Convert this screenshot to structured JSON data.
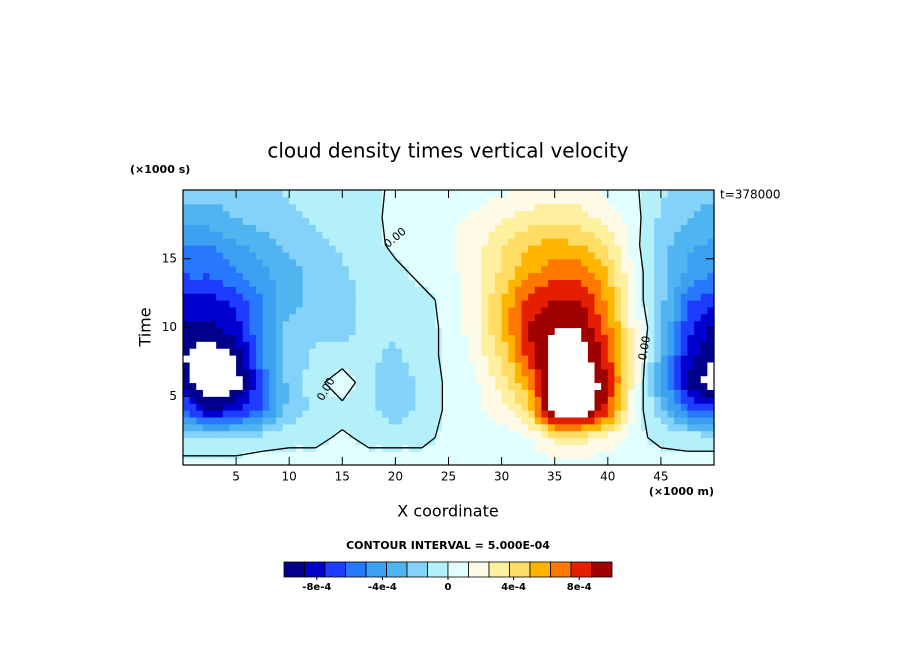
{
  "chart_data": {
    "type": "contour",
    "title": "cloud density times vertical velocity",
    "x_label": "X coordinate",
    "y_label": "Time",
    "x_unit": "(×1000 m)",
    "y_unit": "(×1000 s)",
    "time_label": "t=378000",
    "contour_interval_label": "CONTOUR INTERVAL = 5.000E-04",
    "zero_contour_label": "0.00",
    "xlim": [
      0,
      50
    ],
    "ylim": [
      0,
      20
    ],
    "xticks": [
      5,
      10,
      15,
      20,
      25,
      30,
      35,
      40,
      45
    ],
    "yticks": [
      5,
      10,
      15
    ],
    "x": [
      0,
      2.5,
      5,
      7.5,
      10,
      12.5,
      15,
      17.5,
      20,
      22.5,
      25,
      27.5,
      30,
      32.5,
      35,
      37.5,
      40,
      42.5,
      45,
      47.5,
      50
    ],
    "y": [
      0,
      2,
      4,
      6,
      8,
      10,
      12,
      14,
      16,
      18,
      20
    ],
    "z": [
      [
        5e-05,
        5e-05,
        5e-05,
        5e-05,
        5e-05,
        5e-05,
        5e-05,
        5e-05,
        5e-05,
        5e-05,
        5e-05,
        5e-05,
        5e-05,
        5e-05,
        5e-05,
        5e-05,
        5e-05,
        5e-05,
        5e-05,
        5e-05,
        5e-05
      ],
      [
        -0.0001,
        -0.0001,
        -0.0001,
        -5e-05,
        -3e-05,
        -3e-05,
        2e-05,
        -3e-05,
        -3e-05,
        -3e-05,
        3e-05,
        3e-05,
        5e-05,
        0.0001,
        0.0003,
        0.0003,
        0.0002,
        3e-05,
        -3e-05,
        -5e-05,
        -5e-05
      ],
      [
        -0.0006,
        -0.0009,
        -0.0008,
        -0.0006,
        -0.0002,
        -0.0001,
        -5e-05,
        -0.0001,
        -0.0002,
        -0.0001,
        3e-05,
        8e-05,
        0.0002,
        0.0004,
        0.0012,
        0.0012,
        0.0008,
        0.0001,
        -0.0002,
        -0.0006,
        -0.0007
      ],
      [
        -0.0009,
        -0.0012,
        -0.0011,
        -0.0006,
        -0.0002,
        -5e-05,
        0.0001,
        -0.0001,
        -0.0002,
        -0.0001,
        3e-05,
        0.0001,
        0.0003,
        0.0006,
        0.0012,
        0.0012,
        0.0009,
        0.0002,
        -0.0004,
        -0.0009,
        -0.0011
      ],
      [
        -0.001,
        -0.0011,
        -0.001,
        -0.0005,
        -0.0002,
        -0.0001,
        -0.0001,
        -0.0001,
        -0.00015,
        -5e-05,
        3e-05,
        0.00015,
        0.0004,
        0.0008,
        0.0011,
        0.0011,
        0.0008,
        0.0002,
        -0.0003,
        -0.0008,
        -0.001
      ],
      [
        -0.0009,
        -0.0009,
        -0.0008,
        -0.0005,
        -0.0002,
        -0.00015,
        -0.00015,
        -0.0001,
        -0.0001,
        -5e-05,
        3e-05,
        0.0002,
        0.0005,
        0.0009,
        0.001,
        0.001,
        0.0007,
        0.0002,
        -0.0002,
        -0.0007,
        -0.0009
      ],
      [
        -0.0008,
        -0.0008,
        -0.0007,
        -0.0005,
        -0.0003,
        -0.0002,
        -0.00015,
        -0.0001,
        -5e-05,
        -3e-05,
        3e-05,
        0.0002,
        0.0005,
        0.0008,
        0.0009,
        0.0009,
        0.0006,
        0.0001,
        -0.0002,
        -0.0006,
        -0.0007
      ],
      [
        -0.0006,
        -0.0006,
        -0.0005,
        -0.0004,
        -0.0003,
        -0.0002,
        -0.00015,
        -8e-05,
        -3e-05,
        3e-05,
        8e-05,
        0.0002,
        0.0004,
        0.0006,
        0.0007,
        0.0007,
        0.0005,
        0.0001,
        -0.0002,
        -0.0004,
        -0.0005
      ],
      [
        -0.0005,
        -0.0005,
        -0.0004,
        -0.0003,
        -0.0002,
        -0.00015,
        -0.0001,
        -5e-05,
        3e-05,
        5e-05,
        0.0001,
        0.0002,
        0.00035,
        0.0005,
        0.00055,
        0.0005,
        0.00035,
        5e-05,
        -0.0002,
        -0.00035,
        -0.0004
      ],
      [
        -0.0003,
        -0.0003,
        -0.00025,
        -0.0002,
        -0.00015,
        -0.0001,
        -5e-05,
        -3e-05,
        3e-05,
        5e-05,
        0.0001,
        0.00015,
        0.00025,
        0.0003,
        0.0003,
        0.0003,
        0.0002,
        5e-05,
        -0.00015,
        -0.00025,
        -0.0003
      ],
      [
        -0.0002,
        -0.0002,
        -0.0002,
        -0.00015,
        -0.0001,
        -0.0001,
        -5e-05,
        -3e-05,
        2e-05,
        3e-05,
        3e-05,
        5e-05,
        0.0001,
        0.00015,
        0.0002,
        0.0002,
        0.0001,
        2e-05,
        -0.0001,
        -0.0002,
        -0.0002
      ]
    ],
    "levels": [
      -0.001,
      -0.000875,
      -0.00075,
      -0.000625,
      -0.0005,
      -0.000375,
      -0.00025,
      -0.000125,
      0,
      0.000125,
      0.00025,
      0.000375,
      0.0005,
      0.000625,
      0.00075,
      0.000875,
      0.001
    ],
    "colors": [
      "#00008b",
      "#0000cd",
      "#1e3cff",
      "#2878ff",
      "#3ca0f0",
      "#50b4f0",
      "#82d2fa",
      "#b4f0fa",
      "#e1ffff",
      "#fffae6",
      "#fff0a0",
      "#ffdc64",
      "#ffb400",
      "#ff7800",
      "#e61e00",
      "#a00000"
    ],
    "colorbar_ticks": [
      {
        "value": -0.0008,
        "label": "-8e-4"
      },
      {
        "value": -0.0004,
        "label": "-4e-4"
      },
      0,
      {
        "value": 0.0004,
        "label": "4e-4"
      },
      {
        "value": 0.0008,
        "label": "8e-4"
      }
    ]
  }
}
